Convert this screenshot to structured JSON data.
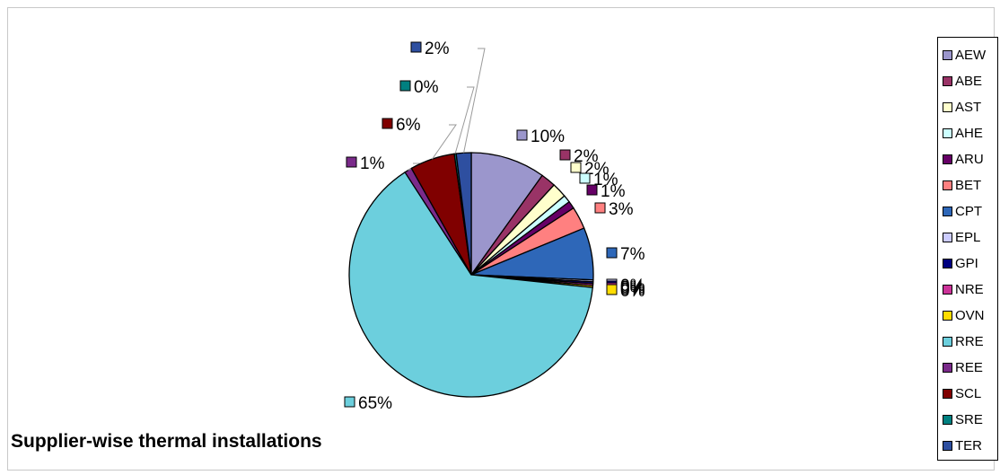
{
  "chart_data": {
    "type": "pie",
    "title": "Supplier-wise thermal installations",
    "legend_position": "right",
    "slices": [
      {
        "name": "AEW",
        "value": 10,
        "label": "10%",
        "color": "#9b96cc"
      },
      {
        "name": "ABE",
        "value": 2,
        "label": "2%",
        "color": "#993366"
      },
      {
        "name": "AST",
        "value": 2,
        "label": "2%",
        "color": "#ffffcc"
      },
      {
        "name": "AHE",
        "value": 1,
        "label": "1%",
        "color": "#ccffff"
      },
      {
        "name": "ARU",
        "value": 1,
        "label": "1%",
        "color": "#660066"
      },
      {
        "name": "BET",
        "value": 3,
        "label": "3%",
        "color": "#ff8080"
      },
      {
        "name": "CPT",
        "value": 7,
        "label": "7%",
        "color": "#2e67b8"
      },
      {
        "name": "EPL",
        "value": 0,
        "label": "0%",
        "color": "#ccccff"
      },
      {
        "name": "GPI",
        "value": 0,
        "label": "0%",
        "color": "#000080"
      },
      {
        "name": "NRE",
        "value": 0,
        "label": "0%",
        "color": "#cc3399"
      },
      {
        "name": "OVN",
        "value": 0,
        "label": "0%",
        "color": "#ffdd00"
      },
      {
        "name": "RRE",
        "value": 65,
        "label": "65%",
        "color": "#6ccfdd"
      },
      {
        "name": "REE",
        "value": 1,
        "label": "1%",
        "color": "#7a2a8a"
      },
      {
        "name": "SCL",
        "value": 6,
        "label": "6%",
        "color": "#800000"
      },
      {
        "name": "SRE",
        "value": 0,
        "label": "0%",
        "color": "#008080"
      },
      {
        "name": "TER",
        "value": 2,
        "label": "2%",
        "color": "#2e4fa0"
      }
    ]
  }
}
